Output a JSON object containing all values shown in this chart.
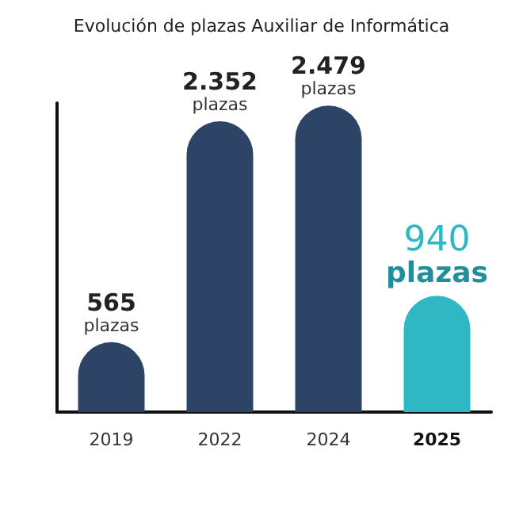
{
  "chart_data": {
    "type": "bar",
    "title": "Evolución de plazas Auxiliar de Informática",
    "categories": [
      "2019",
      "2022",
      "2024",
      "2025"
    ],
    "values": [
      565,
      2352,
      2479,
      940
    ],
    "value_labels": [
      "565 plazas",
      "2.352 plazas",
      "2.479 plazas",
      "940 plazas"
    ],
    "colors": [
      "#2e4466",
      "#2e4466",
      "#2e4466",
      "#2fb8c4"
    ],
    "tick_labels": "x",
    "grid": false
  }
}
